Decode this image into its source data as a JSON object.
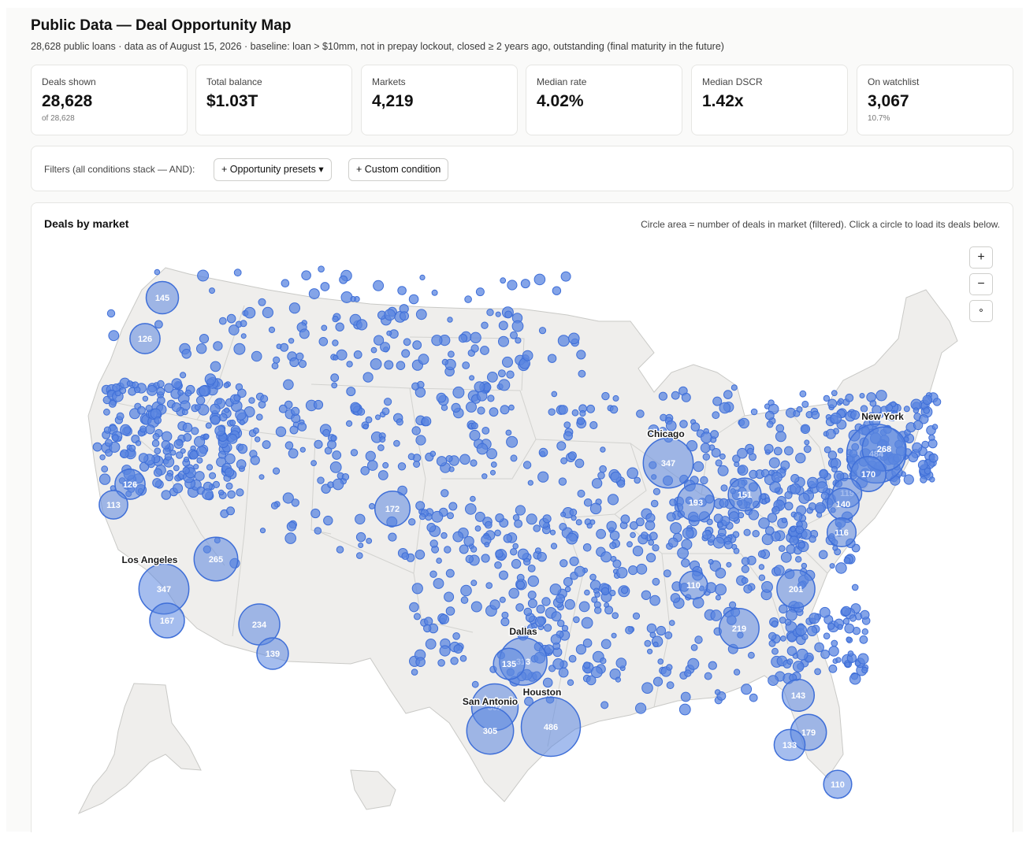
{
  "header": {
    "title": "Public Data — Deal Opportunity Map",
    "subtitle": "28,628 public loans · data as of August 15, 2026 · baseline: loan > $10mm, not in prepay lockout, closed ≥ 2 years ago, outstanding (final maturity in the future)"
  },
  "stats": [
    {
      "label": "Deals shown",
      "value": "28,628",
      "sub": "of 28,628"
    },
    {
      "label": "Total balance",
      "value": "$1.03T",
      "sub": ""
    },
    {
      "label": "Markets",
      "value": "4,219",
      "sub": ""
    },
    {
      "label": "Median rate",
      "value": "4.02%",
      "sub": ""
    },
    {
      "label": "Median DSCR",
      "value": "1.42x",
      "sub": ""
    },
    {
      "label": "On watchlist",
      "value": "3,067",
      "sub": "10.7%"
    }
  ],
  "filters": {
    "label": "Filters (all conditions stack — AND):",
    "presets_button": "+ Opportunity presets ▾",
    "custom_button": "+ Custom condition"
  },
  "map": {
    "title": "Deals by market",
    "hint": "Circle area = number of deals in market (filtered). Click a circle to load its deals below.",
    "zoom_in": "+",
    "zoom_out": "−",
    "reset": "⚬",
    "colors": {
      "bubble_fill": "#5b86e0",
      "bubble_stroke": "#3f6fd8",
      "land": "#efeeec",
      "state_border": "#c9c9c6"
    },
    "city_labels": [
      "New York",
      "Chicago",
      "Los Angeles",
      "Dallas",
      "San Antonio",
      "Houston"
    ],
    "markets": [
      {
        "count": 484,
        "label": "New York"
      },
      {
        "count": 268
      },
      {
        "count": 170
      },
      {
        "count": 119
      },
      {
        "count": 140
      },
      {
        "count": 116
      },
      {
        "count": 347,
        "label": "Chicago"
      },
      {
        "count": 193
      },
      {
        "count": 151
      },
      {
        "count": 110
      },
      {
        "count": 201
      },
      {
        "count": 219
      },
      {
        "count": 143
      },
      {
        "count": 179
      },
      {
        "count": 133
      },
      {
        "count": 110
      },
      {
        "count": 145
      },
      {
        "count": 126
      },
      {
        "count": 126
      },
      {
        "count": 113
      },
      {
        "count": 265
      },
      {
        "count": 347,
        "label": "Los Angeles"
      },
      {
        "count": 167
      },
      {
        "count": 234
      },
      {
        "count": 139
      },
      {
        "count": 172
      },
      {
        "count": 313,
        "label": "Dallas"
      },
      {
        "count": 135
      },
      {
        "count": 302,
        "label": "San Antonio"
      },
      {
        "count": 305
      },
      {
        "count": 486,
        "label": "Houston"
      }
    ]
  }
}
